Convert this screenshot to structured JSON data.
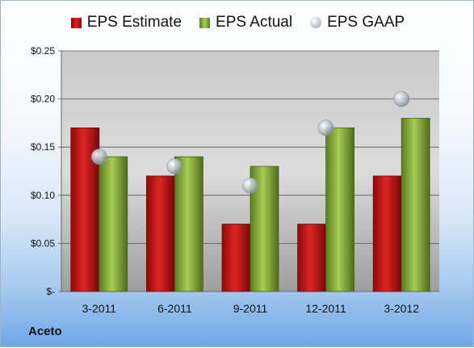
{
  "chart_data": {
    "type": "bar",
    "categories": [
      "3-2011",
      "6-2011",
      "9-2011",
      "12-2011",
      "3-2012"
    ],
    "series": [
      {
        "name": "EPS Estimate",
        "kind": "bar",
        "color": "#d42020",
        "values": [
          0.17,
          0.12,
          0.07,
          0.07,
          0.12
        ]
      },
      {
        "name": "EPS Actual",
        "kind": "bar",
        "color": "#8db33c",
        "values": [
          0.14,
          0.14,
          0.13,
          0.17,
          0.18
        ]
      },
      {
        "name": "EPS GAAP",
        "kind": "marker",
        "color": "#b8bec6",
        "values": [
          0.14,
          0.13,
          0.11,
          0.17,
          0.2
        ]
      }
    ],
    "ylim": [
      0,
      0.25
    ],
    "yticks": [
      0,
      0.05,
      0.1,
      0.15,
      0.2,
      0.25
    ],
    "ytick_labels": [
      "$-",
      "$0.05",
      "$0.10",
      "$0.15",
      "$0.20",
      "$0.25"
    ],
    "grid": true,
    "legend": "top"
  },
  "legend": {
    "estimate": "EPS Estimate",
    "actual": "EPS Actual",
    "gaap": "EPS GAAP"
  },
  "company": "Aceto"
}
